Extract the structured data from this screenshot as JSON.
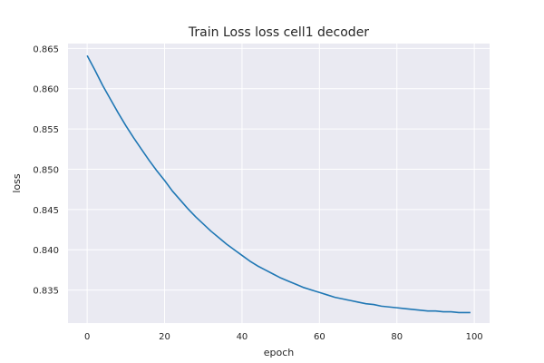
{
  "chart_data": {
    "type": "line",
    "title": "Train Loss loss cell1 decoder",
    "xlabel": "epoch",
    "ylabel": "loss",
    "xlim": [
      -4.95,
      103.95
    ],
    "ylim": [
      0.8309,
      0.8656
    ],
    "xticks": [
      0,
      20,
      40,
      60,
      80,
      100
    ],
    "yticks": [
      0.835,
      0.84,
      0.845,
      0.85,
      0.855,
      0.86,
      0.865
    ],
    "xtick_labels": [
      "0",
      "20",
      "40",
      "60",
      "80",
      "100"
    ],
    "ytick_labels": [
      "0.835",
      "0.840",
      "0.845",
      "0.850",
      "0.855",
      "0.860",
      "0.865"
    ],
    "grid": true,
    "background": "#eaeaf2",
    "series": [
      {
        "color": "#1f77b4",
        "x": [
          0,
          2,
          4,
          6,
          8,
          10,
          12,
          14,
          16,
          18,
          20,
          22,
          24,
          26,
          28,
          30,
          32,
          34,
          36,
          38,
          40,
          42,
          44,
          46,
          48,
          50,
          52,
          54,
          56,
          58,
          60,
          62,
          64,
          66,
          68,
          70,
          72,
          74,
          76,
          78,
          80,
          82,
          84,
          86,
          88,
          90,
          92,
          94,
          96,
          98,
          99
        ],
        "y": [
          0.8641,
          0.8623,
          0.8604,
          0.8587,
          0.857,
          0.8554,
          0.8539,
          0.8525,
          0.8511,
          0.8498,
          0.8486,
          0.8473,
          0.8462,
          0.8451,
          0.8441,
          0.8432,
          0.8423,
          0.8415,
          0.8407,
          0.84,
          0.8393,
          0.8386,
          0.838,
          0.8375,
          0.837,
          0.8365,
          0.8361,
          0.8357,
          0.8353,
          0.835,
          0.8347,
          0.8344,
          0.8341,
          0.8339,
          0.8337,
          0.8335,
          0.8333,
          0.8332,
          0.833,
          0.8329,
          0.8328,
          0.8327,
          0.8326,
          0.8325,
          0.8324,
          0.8324,
          0.8323,
          0.8323,
          0.8322,
          0.8322,
          0.8322
        ]
      }
    ]
  }
}
